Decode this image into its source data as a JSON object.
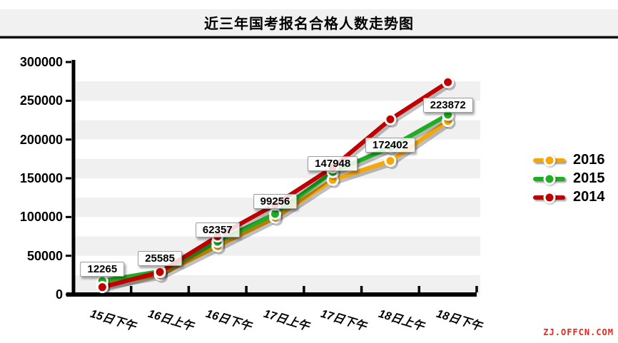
{
  "header": {
    "title": "近三年国考报名合格人数走势图"
  },
  "watermark": "ZJ.OFFCN.COM",
  "legend": {
    "items": [
      {
        "label": "2016",
        "color": "#F5A70A"
      },
      {
        "label": "2015",
        "color": "#1FAD24"
      },
      {
        "label": "2014",
        "color": "#C00000"
      }
    ]
  },
  "chart_data": {
    "type": "line",
    "title": "近三年国考报名合格人数走势图",
    "categories": [
      "15日下午",
      "16日上午",
      "16日下午",
      "17日上午",
      "17日下午",
      "18日上午",
      "18日下午"
    ],
    "series": [
      {
        "name": "2016",
        "color": "#F5A70A",
        "values": [
          12265,
          25585,
          62357,
          99256,
          147948,
          172402,
          223872
        ],
        "data_labels": [
          "12265",
          "25585",
          "62357",
          "99256",
          "147948",
          "172402",
          "223872"
        ]
      },
      {
        "name": "2015",
        "color": "#1FAD24",
        "values": [
          17500,
          30000,
          68000,
          104000,
          158000,
          190000,
          232000
        ]
      },
      {
        "name": "2014",
        "color": "#C00000",
        "values": [
          9500,
          29000,
          75000,
          116000,
          164000,
          226000,
          274000
        ]
      }
    ],
    "xlabel": "",
    "ylabel": "",
    "ylim": [
      0,
      300000
    ],
    "ytick_interval": 50000,
    "band_interval": 25000,
    "band_color": "#F0F0F0",
    "grid": "banded-rows",
    "legend_position": "right"
  }
}
